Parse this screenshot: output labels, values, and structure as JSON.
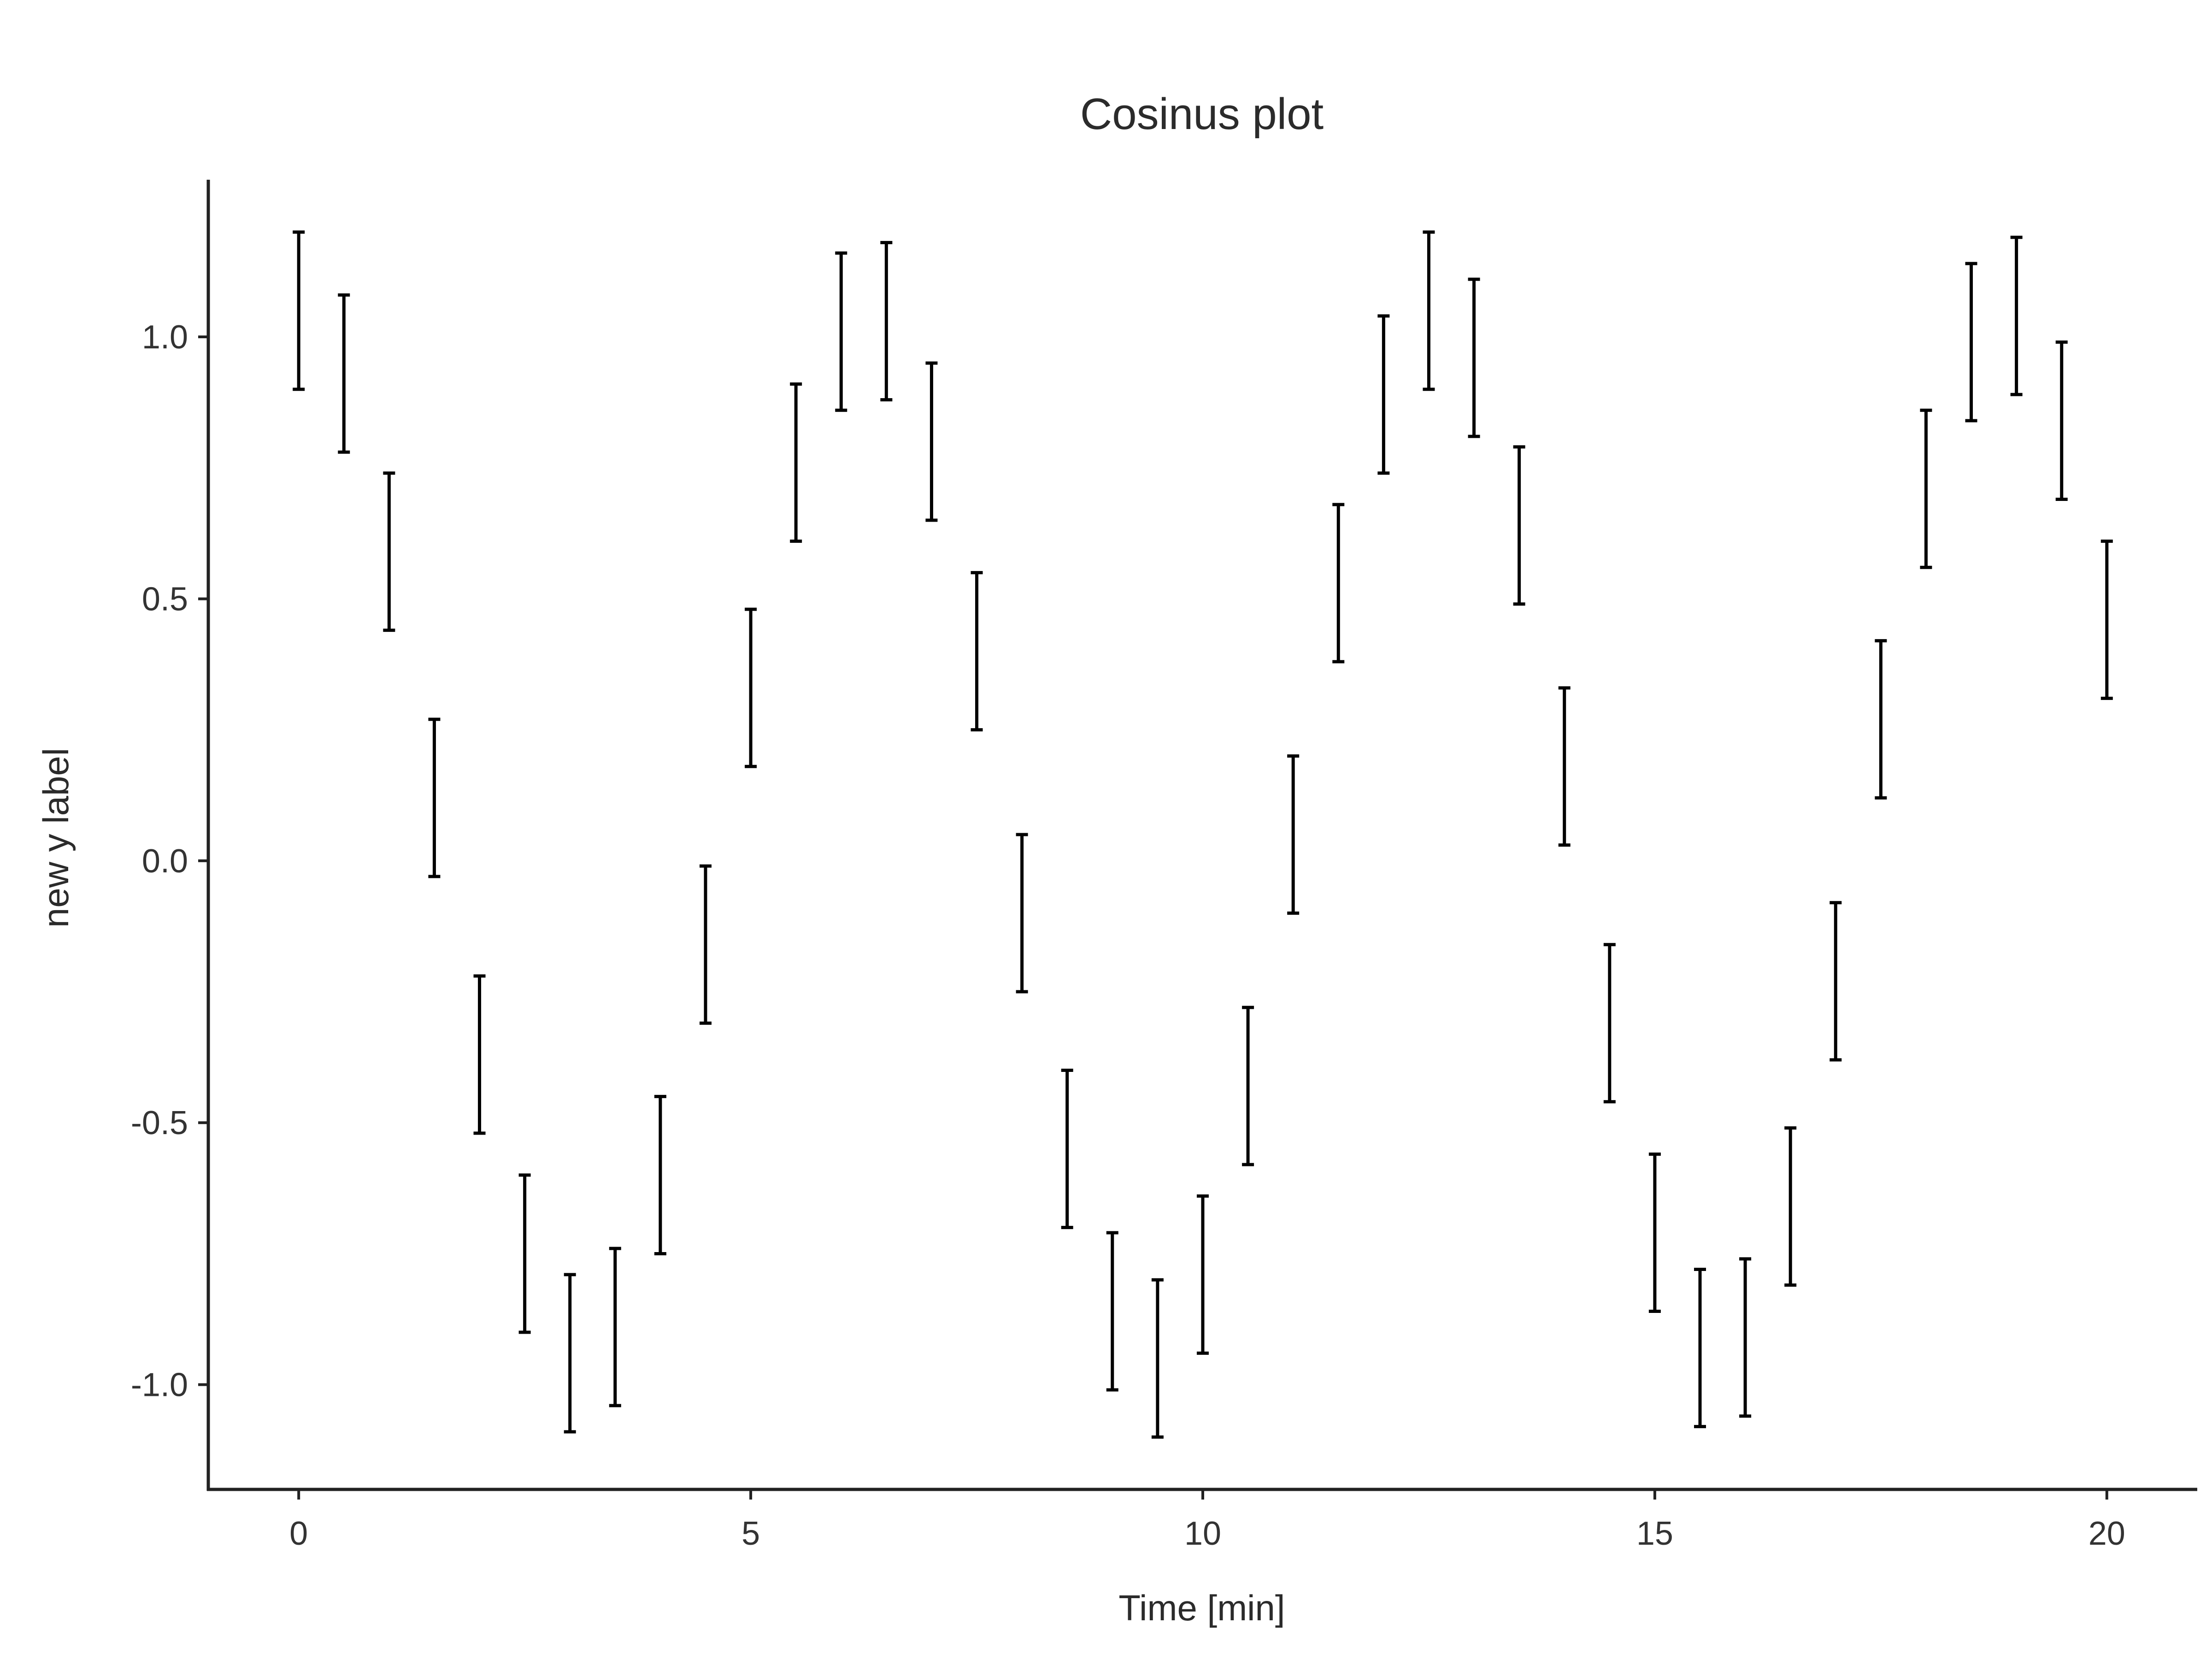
{
  "chart_data": {
    "type": "errorbar",
    "title": "Cosinus plot",
    "xlabel": "Time [min]",
    "ylabel": "new y label",
    "xlim": [
      -1,
      21
    ],
    "ylim": [
      -1.2,
      1.3
    ],
    "x_ticks": [
      0,
      5,
      10,
      15,
      20
    ],
    "x_tick_labels": [
      "0",
      "5",
      "10",
      "15",
      "20"
    ],
    "y_ticks": [
      -1.0,
      -0.5,
      0.0,
      0.5,
      1.0
    ],
    "y_tick_labels": [
      "-1.0",
      "-0.5",
      "0.0",
      "0.5",
      "1.0"
    ],
    "grid": false,
    "legend": "none",
    "series": [
      {
        "x": [
          0,
          0.5,
          1,
          1.5,
          2,
          2.5,
          3,
          3.5,
          4,
          4.5,
          5,
          5.5,
          6,
          6.5,
          7,
          7.5,
          8,
          8.5,
          9,
          9.5,
          10,
          10.5,
          11,
          11.5,
          12,
          12.5,
          13,
          13.5,
          14,
          14.5,
          15,
          15.5,
          16,
          16.5,
          17,
          17.5,
          18,
          18.5,
          19,
          19.5,
          20
        ],
        "y_low": [
          0.9,
          0.78,
          0.44,
          -0.03,
          -0.52,
          -0.9,
          -1.09,
          -1.04,
          -0.75,
          -0.31,
          0.18,
          0.61,
          0.86,
          0.88,
          0.65,
          0.25,
          -0.25,
          -0.7,
          -1.01,
          -1.1,
          -0.94,
          -0.58,
          -0.1,
          0.38,
          0.74,
          0.9,
          0.81,
          0.49,
          0.03,
          -0.46,
          -0.86,
          -1.08,
          -1.06,
          -0.81,
          -0.38,
          0.12,
          0.56,
          0.84,
          0.89,
          0.69,
          0.31
        ],
        "y_high": [
          1.2,
          1.08,
          0.74,
          0.27,
          -0.22,
          -0.6,
          -0.79,
          -0.74,
          -0.45,
          -0.01,
          0.48,
          0.91,
          1.16,
          1.18,
          0.95,
          0.55,
          0.05,
          -0.4,
          -0.71,
          -0.8,
          -0.64,
          -0.28,
          0.2,
          0.68,
          1.04,
          1.2,
          1.11,
          0.79,
          0.33,
          -0.16,
          -0.56,
          -0.78,
          -0.76,
          -0.51,
          -0.08,
          0.42,
          0.86,
          1.14,
          1.19,
          0.99,
          0.61
        ],
        "color": "#000000"
      }
    ]
  }
}
